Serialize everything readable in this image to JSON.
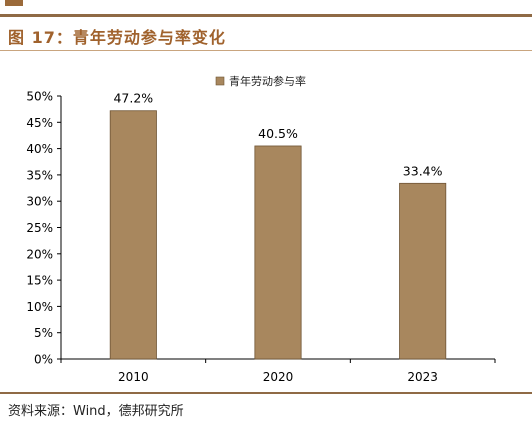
{
  "figure_title": "图 17：青年劳动参与率变化",
  "source": "资料来源：Wind，德邦研究所",
  "colors": {
    "bar": "#a8875e",
    "bar_border": "#6f5535",
    "accent": "#a0622d"
  },
  "chart_data": {
    "type": "bar",
    "categories": [
      "2010",
      "2020",
      "2023"
    ],
    "series": [
      {
        "name": "青年劳动参与率",
        "values": [
          47.2,
          40.5,
          33.4
        ]
      }
    ],
    "data_labels": [
      "47.2%",
      "40.5%",
      "33.4%"
    ],
    "y_ticks": [
      "0%",
      "5%",
      "10%",
      "15%",
      "20%",
      "25%",
      "30%",
      "35%",
      "40%",
      "45%",
      "50%"
    ],
    "ylim": [
      0,
      50
    ],
    "y_step": 5,
    "grid": false,
    "legend_position": "top-center"
  }
}
